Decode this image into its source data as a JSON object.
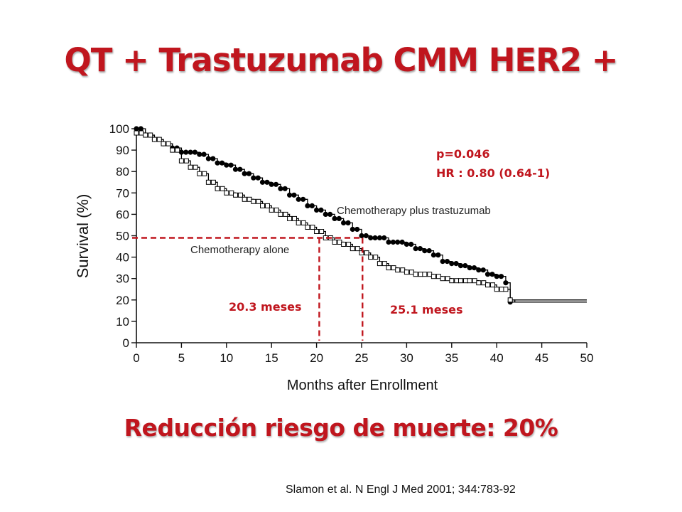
{
  "title": "QT + Trastuzumab CMM HER2 +",
  "conclusion": "Reducción riesgo de muerte: 20%",
  "reference": "Slamon et al. N Engl J Med 2001; 344:783-92",
  "colors": {
    "title_red": "#c0161e",
    "annotation_red": "#c0161e",
    "curve": "#000000"
  },
  "chart_data": {
    "type": "line",
    "xlabel": "Months after Enrollment",
    "ylabel": "Survival (%)",
    "xlim": [
      0,
      50
    ],
    "ylim": [
      0,
      100
    ],
    "xticks": [
      0,
      5,
      10,
      15,
      20,
      25,
      30,
      35,
      40,
      45,
      50
    ],
    "yticks": [
      0,
      10,
      20,
      30,
      40,
      50,
      60,
      70,
      80,
      90,
      100
    ],
    "grid": false,
    "stats": {
      "p_value": "p=0.046",
      "hazard_ratio": "HR : 0.80 (0.64-1)"
    },
    "series": [
      {
        "name": "Chemotherapy plus trastuzumab",
        "marker": "filled-circle",
        "x": [
          0,
          1,
          2,
          3,
          4,
          5,
          6,
          7,
          8,
          9,
          10,
          11,
          12,
          13,
          14,
          15,
          16,
          17,
          18,
          19,
          20,
          21,
          22,
          23,
          24,
          25,
          26,
          27,
          28,
          29,
          30,
          31,
          32,
          33,
          34,
          35,
          36,
          37,
          38,
          39,
          40,
          41,
          41.5,
          42,
          50
        ],
        "y": [
          100,
          97,
          95,
          93,
          91,
          89,
          89,
          88,
          86,
          84,
          83,
          81,
          79,
          77,
          75,
          74,
          72,
          69,
          67,
          64,
          62,
          60,
          58,
          56,
          53,
          50,
          49,
          49,
          47,
          47,
          46,
          44,
          43,
          41,
          38,
          37,
          36,
          35,
          34,
          32,
          31,
          28,
          19,
          20,
          20
        ]
      },
      {
        "name": "Chemotherapy alone",
        "marker": "open-square",
        "x": [
          0,
          1,
          2,
          3,
          4,
          5,
          6,
          7,
          8,
          9,
          10,
          11,
          12,
          13,
          14,
          15,
          16,
          17,
          18,
          19,
          20,
          21,
          22,
          23,
          24,
          25,
          26,
          27,
          28,
          29,
          30,
          31,
          32,
          33,
          34,
          35,
          36,
          37,
          38,
          39,
          40,
          41,
          41.5,
          42,
          50
        ],
        "y": [
          98,
          97,
          95,
          93,
          90,
          85,
          82,
          79,
          75,
          72,
          70,
          69,
          67,
          66,
          64,
          62,
          60,
          58,
          56,
          54,
          52,
          49,
          47,
          46,
          44,
          42,
          40,
          37,
          35,
          34,
          33,
          32,
          32,
          31,
          30,
          29,
          29,
          29,
          28,
          27,
          25,
          25,
          20,
          19,
          19
        ]
      }
    ],
    "median_markers": [
      {
        "label": "20.3 meses",
        "x": 20.3,
        "y": 49
      },
      {
        "label": "25.1 meses",
        "x": 25.1,
        "y": 49
      }
    ]
  }
}
